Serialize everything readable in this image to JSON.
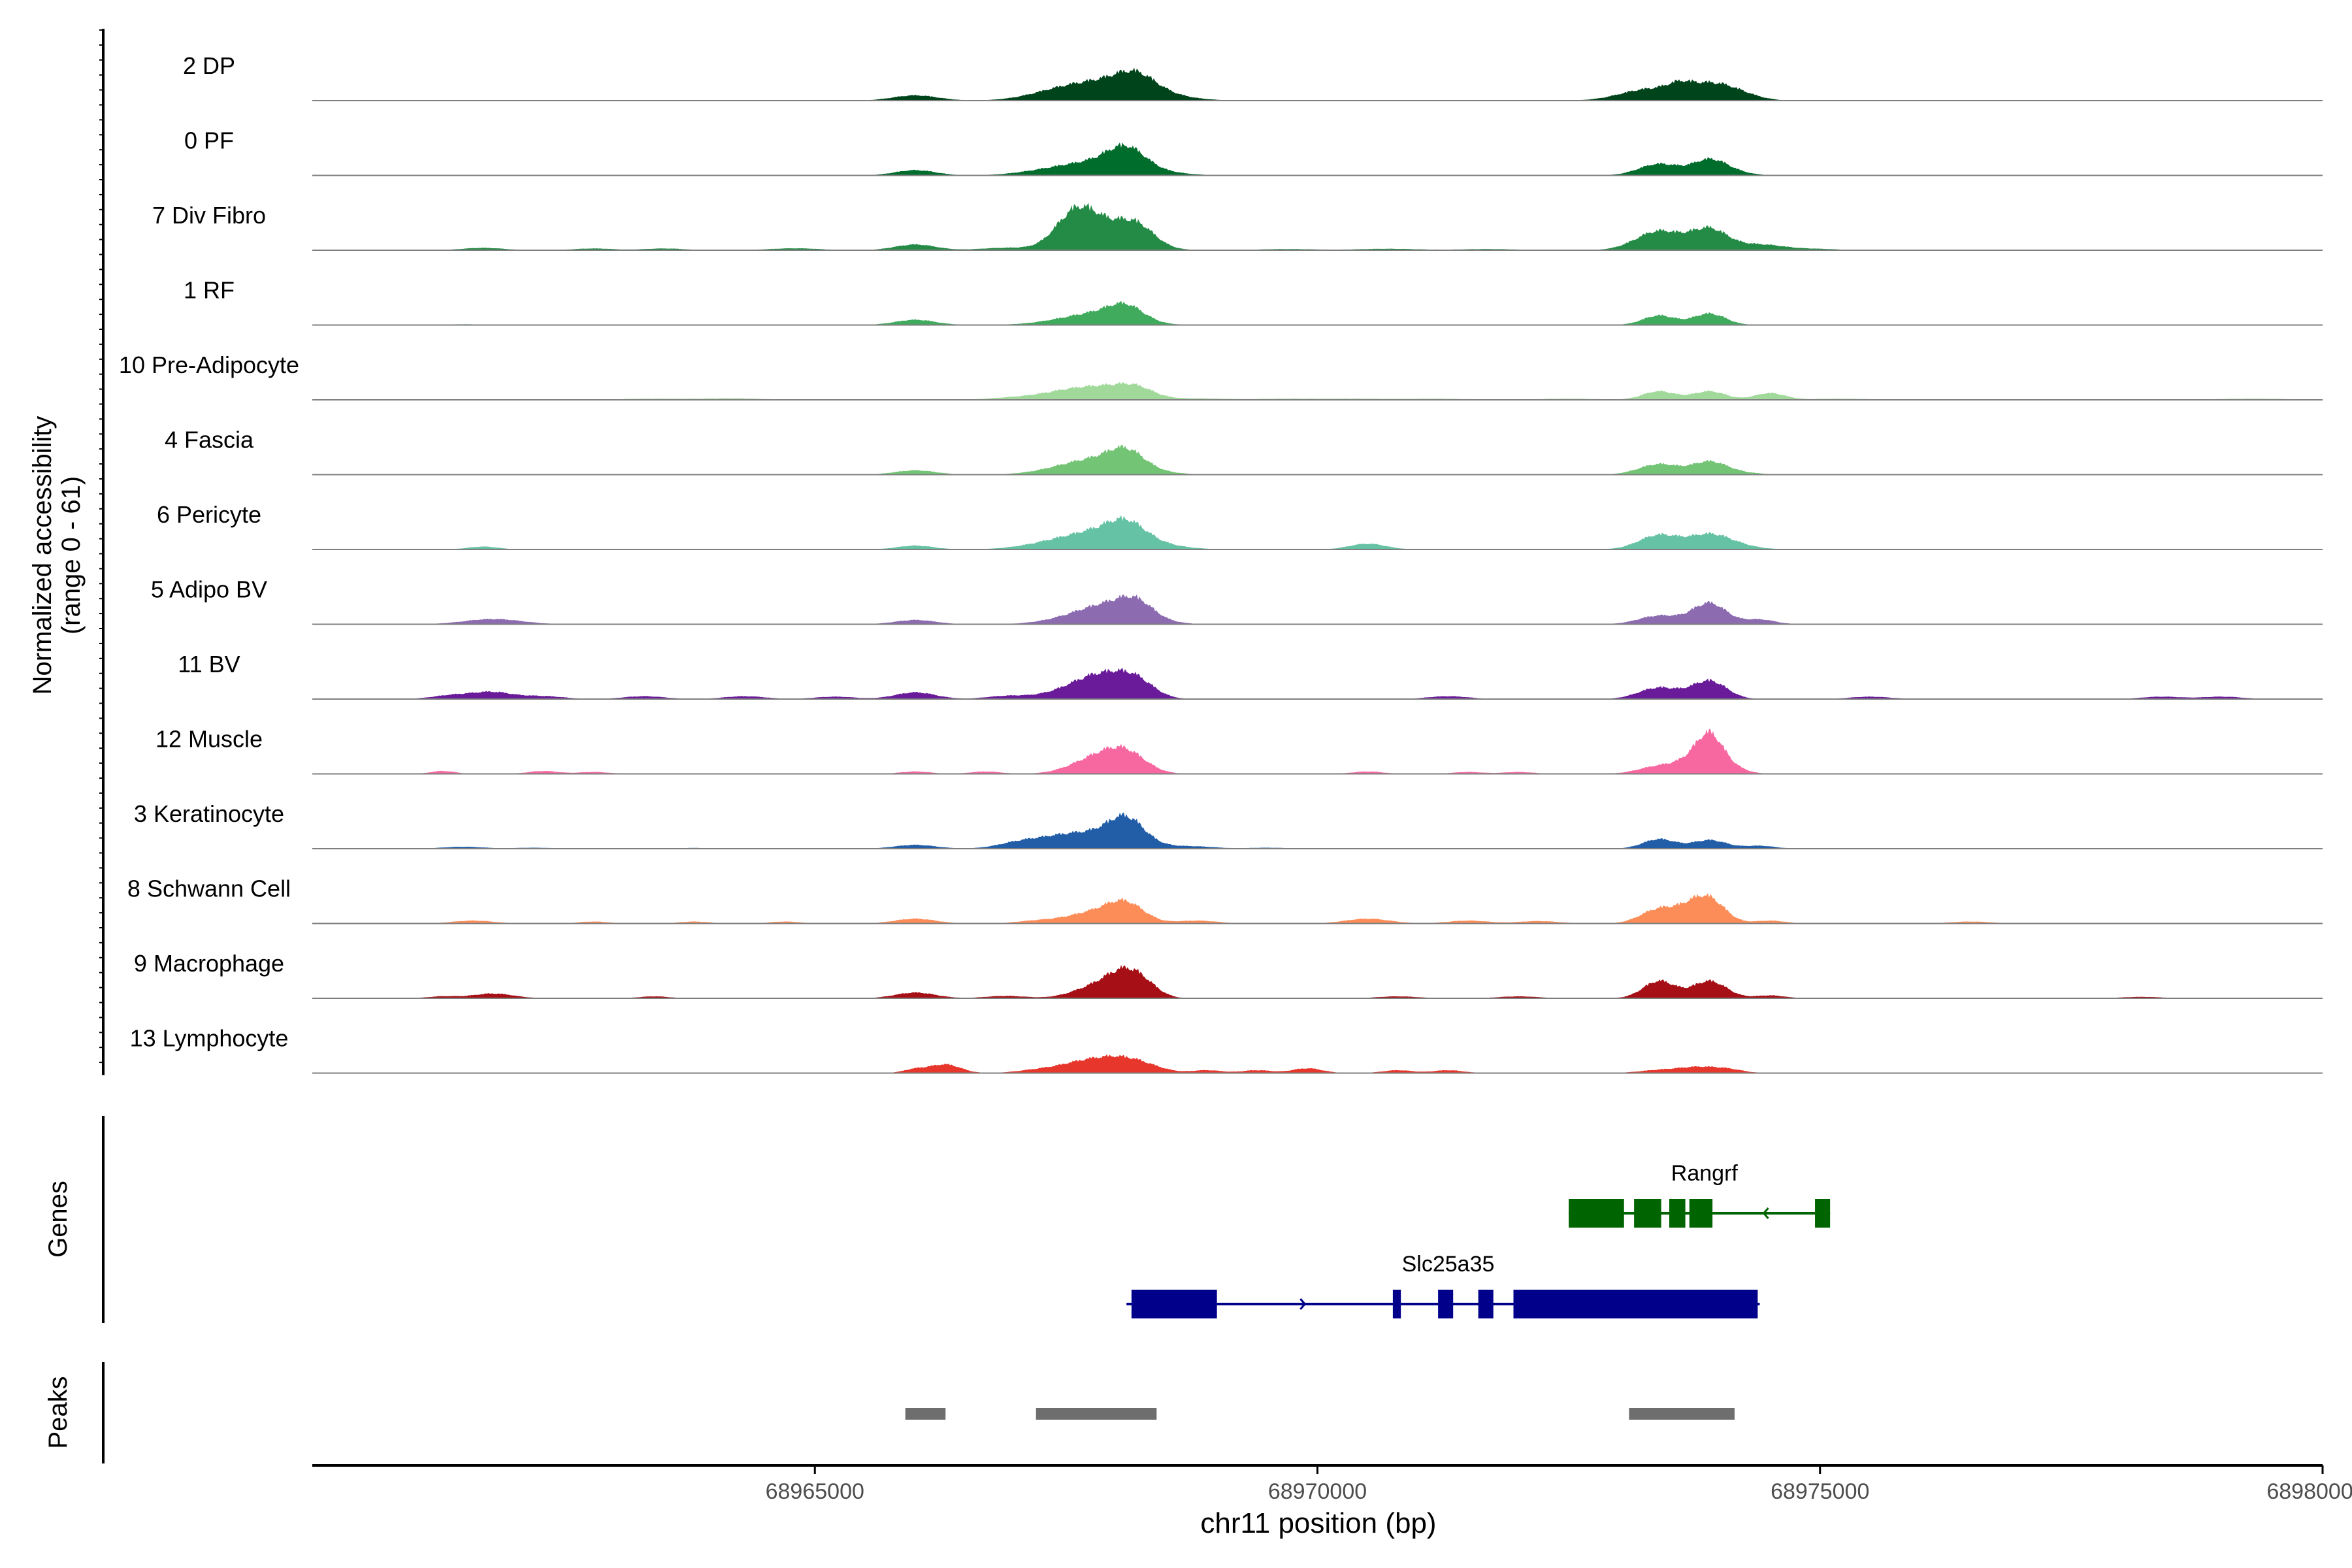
{
  "chart_data": {
    "type": "area",
    "ylabel_line1": "Normalized accessibility",
    "ylabel_line2": "(range 0 - 61)",
    "xlabel": "chr11 position (bp)",
    "xlim": [
      68960000,
      68980000
    ],
    "xticks": [
      68965000,
      68970000,
      68975000,
      68980000
    ],
    "xtick_labels": [
      "68965000",
      "68970000",
      "68975000",
      "68980000"
    ],
    "ylim": [
      0,
      61
    ],
    "genes_label": "Genes",
    "peaks_label": "Peaks",
    "tracks": [
      {
        "name": "2 DP",
        "color": "#00441B",
        "peaks": [
          [
            68961400,
            0.5,
            150
          ],
          [
            68962300,
            0.4,
            150
          ],
          [
            68966000,
            5.5,
            220
          ],
          [
            68967400,
            7,
            300
          ],
          [
            68968000,
            21,
            400
          ],
          [
            68968200,
            12,
            180
          ],
          [
            68973300,
            12,
            280
          ],
          [
            68973600,
            7,
            120
          ],
          [
            68973900,
            16,
            230
          ],
          [
            68974200,
            5,
            200
          ],
          [
            68976500,
            0.5,
            200
          ],
          [
            68978500,
            0.5,
            200
          ]
        ]
      },
      {
        "name": "0 PF",
        "color": "#006D2C",
        "peaks": [
          [
            68961500,
            0.5,
            150
          ],
          [
            68966000,
            5.5,
            200
          ],
          [
            68967300,
            3,
            300
          ],
          [
            68967900,
            15,
            400
          ],
          [
            68968100,
            18,
            180
          ],
          [
            68970800,
            0.6,
            200
          ],
          [
            68973400,
            12,
            200
          ],
          [
            68973900,
            15,
            170
          ],
          [
            68974100,
            3,
            200
          ],
          [
            68976000,
            0.5,
            200
          ]
        ]
      },
      {
        "name": "7 Div Fibro",
        "color": "#238B45",
        "peaks": [
          [
            68961700,
            2.5,
            200
          ],
          [
            68962800,
            1.8,
            200
          ],
          [
            68963500,
            1.8,
            200
          ],
          [
            68964800,
            2,
            250
          ],
          [
            68966000,
            6,
            200
          ],
          [
            68966900,
            2.5,
            250
          ],
          [
            68967600,
            33,
            200
          ],
          [
            68967900,
            20,
            300
          ],
          [
            68968200,
            18,
            180
          ],
          [
            68969700,
            1.2,
            300
          ],
          [
            68970700,
            1.5,
            300
          ],
          [
            68971700,
            1.2,
            300
          ],
          [
            68973400,
            20,
            230
          ],
          [
            68973900,
            21,
            180
          ],
          [
            68974400,
            6,
            250
          ],
          [
            68975000,
            1.2,
            200
          ]
        ]
      },
      {
        "name": "1 RF",
        "color": "#41AB5D",
        "peaks": [
          [
            68961500,
            0.8,
            150
          ],
          [
            68966000,
            5.5,
            200
          ],
          [
            68967500,
            4,
            300
          ],
          [
            68967900,
            11,
            300
          ],
          [
            68968100,
            13,
            170
          ],
          [
            68973400,
            10,
            160
          ],
          [
            68973900,
            12,
            160
          ],
          [
            68976000,
            0.5,
            200
          ]
        ]
      },
      {
        "name": "10 Pre-Adipocyte",
        "color": "#A1D99B",
        "peaks": [
          [
            68963400,
            1.2,
            350
          ],
          [
            68964200,
            1.5,
            300
          ],
          [
            68967000,
            2.5,
            250
          ],
          [
            68967500,
            8,
            250
          ],
          [
            68967900,
            11,
            250
          ],
          [
            68968200,
            10,
            180
          ],
          [
            68968800,
            1.5,
            300
          ],
          [
            68969700,
            1.2,
            300
          ],
          [
            68970400,
            1.2,
            300
          ],
          [
            68971200,
            1.2,
            300
          ],
          [
            68972500,
            1.2,
            300
          ],
          [
            68973400,
            9,
            160
          ],
          [
            68973900,
            9,
            160
          ],
          [
            68974500,
            7,
            150
          ],
          [
            68975200,
            1.2,
            300
          ],
          [
            68979300,
            1.2,
            400
          ]
        ]
      },
      {
        "name": "4 Fascia",
        "color": "#74C476",
        "peaks": [
          [
            68966000,
            4.5,
            200
          ],
          [
            68967500,
            4,
            300
          ],
          [
            68967900,
            15,
            350
          ],
          [
            68968100,
            15,
            170
          ],
          [
            68969700,
            0.6,
            200
          ],
          [
            68973400,
            11,
            200
          ],
          [
            68973900,
            13,
            170
          ],
          [
            68974200,
            2,
            200
          ],
          [
            68976000,
            0.5,
            200
          ]
        ]
      },
      {
        "name": "6 Pericyte",
        "color": "#66C2A4",
        "peaks": [
          [
            68961700,
            3,
            150
          ],
          [
            68966000,
            4,
            180
          ],
          [
            68967300,
            3,
            300
          ],
          [
            68967900,
            20,
            400
          ],
          [
            68968100,
            14,
            180
          ],
          [
            68970500,
            6,
            180
          ],
          [
            68973400,
            15,
            200
          ],
          [
            68973900,
            15,
            200
          ],
          [
            68974200,
            3,
            200
          ],
          [
            68976000,
            0.5,
            200
          ]
        ]
      },
      {
        "name": "5 Adipo BV",
        "color": "#8C6BB1",
        "peaks": [
          [
            68961800,
            5.5,
            280
          ],
          [
            68966000,
            4.5,
            200
          ],
          [
            68967600,
            6,
            300
          ],
          [
            68968000,
            19,
            300
          ],
          [
            68968200,
            12,
            160
          ],
          [
            68973400,
            9,
            200
          ],
          [
            68973900,
            22,
            170
          ],
          [
            68974400,
            5,
            150
          ],
          [
            68975000,
            0.5,
            150
          ]
        ]
      },
      {
        "name": "11 BV",
        "color": "#6A1B9A",
        "peaks": [
          [
            68961400,
            4,
            200
          ],
          [
            68961800,
            7,
            200
          ],
          [
            68962300,
            3,
            200
          ],
          [
            68963300,
            3,
            200
          ],
          [
            68964300,
            3,
            200
          ],
          [
            68965200,
            2.5,
            200
          ],
          [
            68966000,
            7,
            200
          ],
          [
            68966900,
            3,
            200
          ],
          [
            68967600,
            9,
            300
          ],
          [
            68967900,
            20,
            260
          ],
          [
            68968200,
            14,
            180
          ],
          [
            68971300,
            3,
            200
          ],
          [
            68973400,
            12,
            200
          ],
          [
            68973900,
            19,
            170
          ],
          [
            68975500,
            2.5,
            200
          ],
          [
            68978400,
            2.5,
            200
          ],
          [
            68979000,
            2.5,
            200
          ]
        ]
      },
      {
        "name": "12 Muscle",
        "color": "#F768A1",
        "peaks": [
          [
            68961300,
            3,
            120
          ],
          [
            68962300,
            3,
            150
          ],
          [
            68962800,
            2,
            150
          ],
          [
            68966000,
            2.5,
            150
          ],
          [
            68966700,
            2.5,
            150
          ],
          [
            68967800,
            16,
            250
          ],
          [
            68968100,
            19,
            200
          ],
          [
            68970500,
            2.5,
            150
          ],
          [
            68971500,
            2,
            150
          ],
          [
            68972000,
            2,
            150
          ],
          [
            68973400,
            8,
            200
          ],
          [
            68973700,
            10,
            150
          ],
          [
            68973900,
            36,
            130
          ],
          [
            68974100,
            7,
            150
          ]
        ]
      },
      {
        "name": "3 Keratinocyte",
        "color": "#225EA8",
        "peaks": [
          [
            68961500,
            2,
            200
          ],
          [
            68962200,
            1,
            200
          ],
          [
            68963800,
            0.8,
            200
          ],
          [
            68966000,
            4,
            200
          ],
          [
            68967000,
            4,
            200
          ],
          [
            68967400,
            9,
            300
          ],
          [
            68967900,
            14,
            350
          ],
          [
            68968100,
            22,
            170
          ],
          [
            68968800,
            2,
            200
          ],
          [
            68969500,
            1,
            200
          ],
          [
            68973400,
            10,
            160
          ],
          [
            68973900,
            9,
            170
          ],
          [
            68974400,
            3,
            150
          ],
          [
            68975000,
            0.5,
            150
          ],
          [
            68976000,
            0.5,
            200
          ],
          [
            68977500,
            0.5,
            200
          ]
        ]
      },
      {
        "name": "8 Schwann Cell",
        "color": "#FC8D59",
        "peaks": [
          [
            68961600,
            3,
            200
          ],
          [
            68962800,
            2,
            150
          ],
          [
            68963800,
            2,
            150
          ],
          [
            68964700,
            2,
            150
          ],
          [
            68966000,
            5,
            200
          ],
          [
            68967200,
            2.5,
            200
          ],
          [
            68967800,
            12,
            280
          ],
          [
            68968100,
            17,
            180
          ],
          [
            68968800,
            3,
            200
          ],
          [
            68970500,
            5,
            220
          ],
          [
            68971500,
            3,
            200
          ],
          [
            68972200,
            2.5,
            200
          ],
          [
            68973400,
            15,
            180
          ],
          [
            68973700,
            10,
            150
          ],
          [
            68973900,
            24,
            160
          ],
          [
            68974500,
            3,
            150
          ],
          [
            68976500,
            2,
            200
          ]
        ]
      },
      {
        "name": "9 Macrophage",
        "color": "#A50F15",
        "peaks": [
          [
            68961300,
            2,
            150
          ],
          [
            68961800,
            5,
            200
          ],
          [
            68963400,
            2,
            150
          ],
          [
            68966000,
            6,
            200
          ],
          [
            68966900,
            2.5,
            200
          ],
          [
            68967800,
            12,
            230
          ],
          [
            68968100,
            24,
            180
          ],
          [
            68968300,
            7,
            150
          ],
          [
            68970800,
            2,
            200
          ],
          [
            68972000,
            2,
            200
          ],
          [
            68973400,
            18,
            160
          ],
          [
            68973900,
            18,
            170
          ],
          [
            68974500,
            3,
            150
          ],
          [
            68978200,
            1.5,
            200
          ]
        ]
      },
      {
        "name": "13 Lymphocyte",
        "color": "#E7372D",
        "peaks": [
          [
            68966000,
            4,
            120
          ],
          [
            68966300,
            9,
            150
          ],
          [
            68967200,
            3,
            200
          ],
          [
            68967600,
            8,
            220
          ],
          [
            68968000,
            15,
            250
          ],
          [
            68968300,
            4,
            200
          ],
          [
            68968900,
            3,
            150
          ],
          [
            68969400,
            3,
            150
          ],
          [
            68969900,
            5,
            150
          ],
          [
            68970800,
            3,
            150
          ],
          [
            68971300,
            3,
            150
          ],
          [
            68973400,
            3,
            200
          ],
          [
            68973800,
            6,
            200
          ],
          [
            68974100,
            3,
            150
          ]
        ]
      }
    ],
    "genes": [
      {
        "name": "Rangrf",
        "color": "#006400",
        "strand": "-",
        "start": 68972500,
        "end": 68975100,
        "exons": [
          [
            68972500,
            68973050
          ],
          [
            68973150,
            68973420
          ],
          [
            68973500,
            68973660
          ],
          [
            68973700,
            68973930
          ],
          [
            68974950,
            68975100
          ]
        ]
      },
      {
        "name": "Slc25a35",
        "color": "#00008B",
        "strand": "+",
        "start": 68968100,
        "end": 68974400,
        "exons": [
          [
            68968150,
            68969000
          ],
          [
            68970750,
            68970830
          ],
          [
            68971200,
            68971350
          ],
          [
            68971600,
            68971750
          ],
          [
            68971950,
            68974380
          ]
        ]
      }
    ],
    "peak_regions": [
      [
        68965900,
        68966300
      ],
      [
        68967200,
        68968400
      ],
      [
        68973100,
        68974150
      ]
    ],
    "peak_color": "#6E6E6E"
  }
}
